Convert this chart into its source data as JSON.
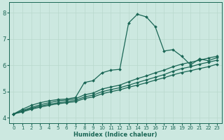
{
  "xlabel": "Humidex (Indice chaleur)",
  "bg_color": "#cce8e0",
  "grid_color": "#b8d8cc",
  "line_color": "#1a6655",
  "xlim": [
    -0.5,
    23.5
  ],
  "ylim": [
    3.8,
    8.4
  ],
  "yticks": [
    4,
    5,
    6,
    7,
    8
  ],
  "xticks": [
    0,
    1,
    2,
    3,
    4,
    5,
    6,
    7,
    8,
    9,
    10,
    11,
    12,
    13,
    14,
    15,
    16,
    17,
    18,
    19,
    20,
    21,
    22,
    23
  ],
  "lines": [
    {
      "x": [
        0,
        1,
        2,
        3,
        4,
        5,
        6,
        7,
        8,
        9,
        10,
        11,
        12,
        13,
        14,
        15,
        16,
        17,
        18,
        19,
        20,
        21,
        22,
        23
      ],
      "y": [
        4.15,
        4.33,
        4.48,
        4.58,
        4.65,
        4.7,
        4.72,
        4.78,
        5.35,
        5.42,
        5.72,
        5.82,
        5.85,
        7.62,
        7.95,
        7.85,
        7.48,
        6.55,
        6.6,
        6.35,
        6.02,
        6.25,
        6.18,
        6.3
      ]
    },
    {
      "x": [
        0,
        1,
        2,
        3,
        4,
        5,
        6,
        7,
        8,
        9,
        10,
        11,
        12,
        13,
        14,
        15,
        16,
        17,
        18,
        19,
        20,
        21,
        22,
        23
      ],
      "y": [
        4.15,
        4.28,
        4.4,
        4.5,
        4.58,
        4.65,
        4.68,
        4.73,
        4.88,
        4.95,
        5.1,
        5.18,
        5.25,
        5.38,
        5.5,
        5.6,
        5.72,
        5.82,
        5.95,
        6.05,
        6.12,
        6.2,
        6.28,
        6.35
      ]
    },
    {
      "x": [
        0,
        1,
        2,
        3,
        4,
        5,
        6,
        7,
        8,
        9,
        10,
        11,
        12,
        13,
        14,
        15,
        16,
        17,
        18,
        19,
        20,
        21,
        22,
        23
      ],
      "y": [
        4.15,
        4.25,
        4.36,
        4.45,
        4.52,
        4.58,
        4.62,
        4.67,
        4.8,
        4.87,
        5.0,
        5.08,
        5.15,
        5.25,
        5.35,
        5.45,
        5.55,
        5.65,
        5.78,
        5.88,
        5.95,
        6.05,
        6.12,
        6.2
      ]
    },
    {
      "x": [
        0,
        1,
        2,
        3,
        4,
        5,
        6,
        7,
        8,
        9,
        10,
        11,
        12,
        13,
        14,
        15,
        16,
        17,
        18,
        19,
        20,
        21,
        22,
        23
      ],
      "y": [
        4.15,
        4.23,
        4.33,
        4.41,
        4.48,
        4.54,
        4.58,
        4.62,
        4.74,
        4.8,
        4.92,
        5.0,
        5.07,
        5.17,
        5.25,
        5.34,
        5.44,
        5.53,
        5.64,
        5.73,
        5.8,
        5.88,
        5.95,
        6.05
      ]
    }
  ],
  "marker": "D",
  "markersize": 2.0,
  "linewidth": 0.9
}
